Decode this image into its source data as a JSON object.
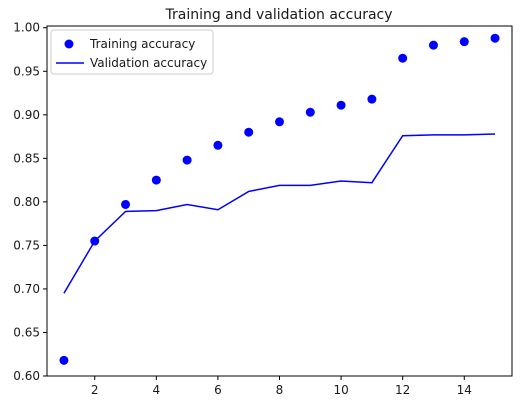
{
  "chart_data": {
    "type": "line",
    "title": "Training and validation accuracy",
    "xlabel": "",
    "ylabel": "",
    "xlim": [
      0.45,
      15.55
    ],
    "ylim": [
      0.6,
      1.002
    ],
    "xticks": [
      2,
      4,
      6,
      8,
      10,
      12,
      14
    ],
    "yticks": [
      0.6,
      0.65,
      0.7,
      0.75,
      0.8,
      0.85,
      0.9,
      0.95,
      1.0
    ],
    "grid": false,
    "legend": "top-left",
    "x": [
      1,
      2,
      3,
      4,
      5,
      6,
      7,
      8,
      9,
      10,
      11,
      12,
      13,
      14,
      15
    ],
    "series": [
      {
        "name": "Training accuracy",
        "style": "markers",
        "color": "#0000ff",
        "values": [
          0.618,
          0.755,
          0.797,
          0.825,
          0.848,
          0.865,
          0.88,
          0.892,
          0.903,
          0.911,
          0.918,
          0.965,
          0.98,
          0.984,
          0.988
        ]
      },
      {
        "name": "Validation accuracy",
        "style": "line",
        "color": "#0000ff",
        "values": [
          0.695,
          0.755,
          0.789,
          0.79,
          0.797,
          0.791,
          0.812,
          0.819,
          0.819,
          0.824,
          0.822,
          0.876,
          0.877,
          0.877,
          0.878
        ]
      }
    ]
  }
}
